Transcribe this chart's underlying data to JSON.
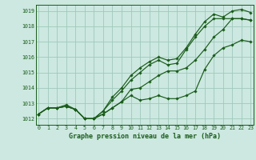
{
  "title": "Graphe pression niveau de la mer (hPa)",
  "bg_color": "#cce8e0",
  "line_color": "#1a5c1a",
  "grid_color": "#a0c8bc",
  "x_ticks": [
    0,
    1,
    2,
    3,
    4,
    5,
    6,
    7,
    8,
    9,
    10,
    11,
    12,
    13,
    14,
    15,
    16,
    17,
    18,
    19,
    20,
    21,
    22,
    23
  ],
  "y_ticks": [
    1012,
    1013,
    1014,
    1015,
    1016,
    1017,
    1018,
    1019
  ],
  "xlim": [
    -0.3,
    23.3
  ],
  "ylim": [
    1011.6,
    1019.4
  ],
  "series": [
    [
      1012.3,
      1012.7,
      1012.7,
      1012.8,
      1012.6,
      1012.0,
      1012.0,
      1012.3,
      1012.7,
      1013.1,
      1013.5,
      1013.2,
      1013.3,
      1013.5,
      1013.3,
      1013.3,
      1013.5,
      1013.8,
      1015.2,
      1016.1,
      1016.6,
      1016.8,
      1017.1,
      1017.0
    ],
    [
      1012.3,
      1012.7,
      1012.7,
      1012.8,
      1012.6,
      1012.0,
      1012.0,
      1012.3,
      1012.7,
      1013.1,
      1013.9,
      1014.0,
      1014.4,
      1014.8,
      1015.1,
      1015.1,
      1015.3,
      1015.8,
      1016.5,
      1017.3,
      1017.8,
      1018.5,
      1018.5,
      1018.4
    ],
    [
      1012.3,
      1012.7,
      1012.7,
      1012.8,
      1012.6,
      1012.0,
      1012.0,
      1012.5,
      1013.2,
      1013.8,
      1014.5,
      1015.0,
      1015.5,
      1015.8,
      1015.5,
      1015.6,
      1016.5,
      1017.3,
      1018.0,
      1018.5,
      1018.5,
      1018.5,
      1018.5,
      1018.4
    ],
    [
      1012.3,
      1012.7,
      1012.7,
      1012.9,
      1012.6,
      1012.0,
      1012.0,
      1012.5,
      1013.4,
      1014.0,
      1014.8,
      1015.3,
      1015.7,
      1016.0,
      1015.8,
      1015.9,
      1016.6,
      1017.5,
      1018.3,
      1018.8,
      1018.6,
      1019.0,
      1019.1,
      1018.9
    ]
  ]
}
